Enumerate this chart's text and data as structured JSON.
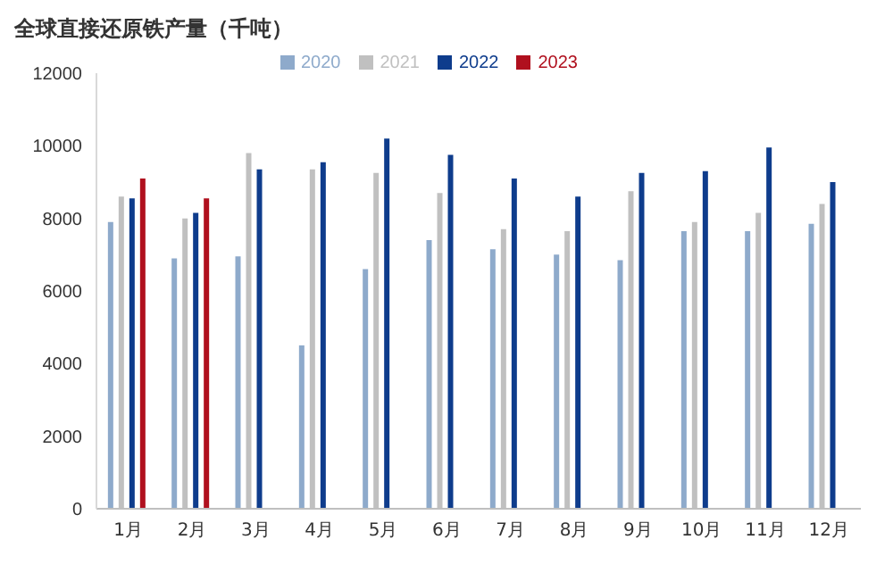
{
  "chart_data": {
    "type": "bar",
    "title": "全球直接还原铁产量（千吨）",
    "categories": [
      "1月",
      "2月",
      "3月",
      "4月",
      "5月",
      "6月",
      "7月",
      "8月",
      "9月",
      "10月",
      "11月",
      "12月"
    ],
    "series": [
      {
        "name": "2020",
        "color": "#8eaacb",
        "values": [
          7900,
          6900,
          6950,
          4500,
          6600,
          7400,
          7150,
          7000,
          6850,
          7650,
          7650,
          7850
        ]
      },
      {
        "name": "2021",
        "color": "#c0c0c0",
        "values": [
          8600,
          8000,
          9800,
          9350,
          9250,
          8700,
          7700,
          7650,
          8750,
          7900,
          8150,
          8400
        ]
      },
      {
        "name": "2022",
        "color": "#0e3c8c",
        "values": [
          8550,
          8150,
          9350,
          9550,
          10200,
          9750,
          9100,
          8600,
          9250,
          9300,
          9950,
          9000
        ]
      },
      {
        "name": "2023",
        "color": "#b0101e",
        "values": [
          9100,
          8550,
          null,
          null,
          null,
          null,
          null,
          null,
          null,
          null,
          null,
          null
        ]
      }
    ],
    "ylim": [
      0,
      12000
    ],
    "yticks": [
      0,
      2000,
      4000,
      6000,
      8000,
      10000,
      12000
    ],
    "legend": "top"
  }
}
